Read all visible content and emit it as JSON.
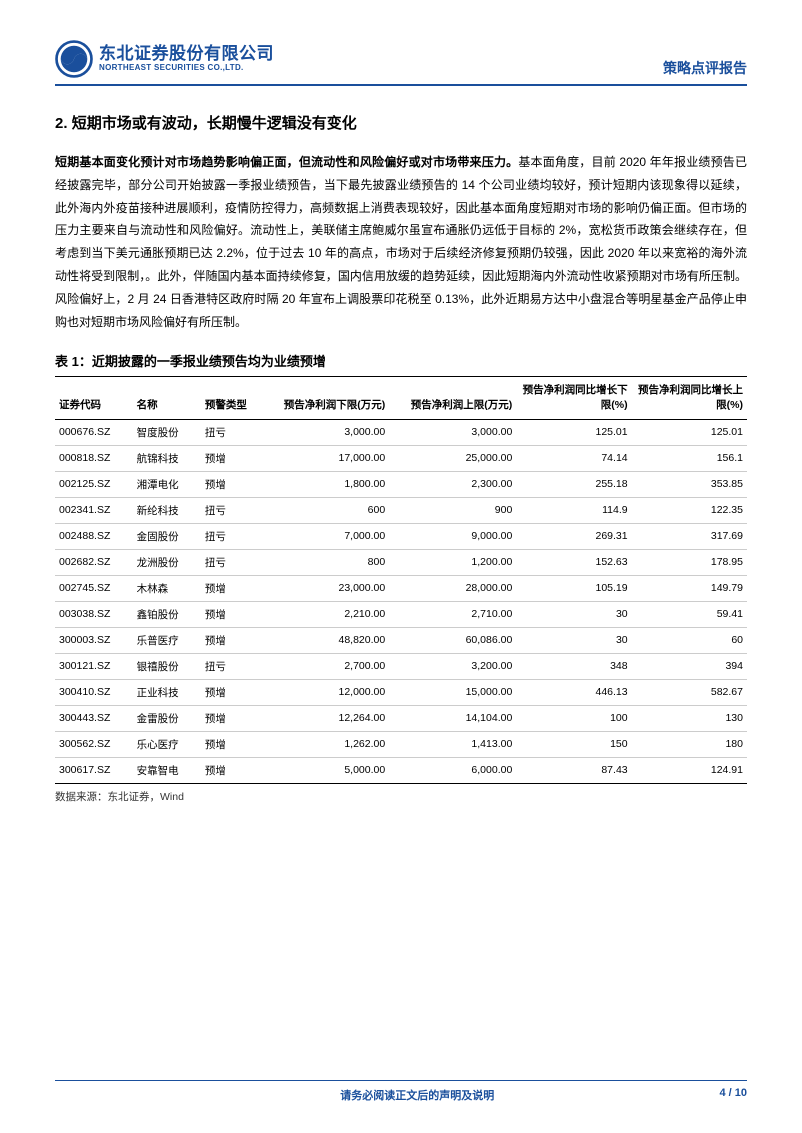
{
  "header": {
    "logo_cn": "东北证券股份有限公司",
    "logo_en": "NORTHEAST SECURITIES CO.,LTD.",
    "report_type": "策略点评报告"
  },
  "section": {
    "number": "2.",
    "title": "短期市场或有波动，长期慢牛逻辑没有变化"
  },
  "paragraph": {
    "lead": "短期基本面变化预计对市场趋势影响偏正面，但流动性和风险偏好或对市场带来压力。",
    "body": "基本面角度，目前 2020 年年报业绩预告已经披露完毕，部分公司开始披露一季报业绩预告，当下最先披露业绩预告的 14 个公司业绩均较好，预计短期内该现象得以延续，此外海内外疫苗接种进展顺利，疫情防控得力，高频数据上消费表现较好，因此基本面角度短期对市场的影响仍偏正面。但市场的压力主要来自与流动性和风险偏好。流动性上，美联储主席鲍威尔虽宣布通胀仍远低于目标的 2%，宽松货币政策会继续存在，但考虑到当下美元通胀预期已达 2.2%，位于过去 10 年的高点，市场对于后续经济修复预期仍较强，因此 2020 年以来宽裕的海外流动性将受到限制，。此外，伴随国内基本面持续修复，国内信用放缓的趋势延续，因此短期海内外流动性收紧预期对市场有所压制。风险偏好上，2 月 24 日香港特区政府时隔 20 年宣布上调股票印花税至 0.13%，此外近期易方达中小盘混合等明星基金产品停止申购也对短期市场风险偏好有所压制。"
  },
  "table": {
    "title": "表 1：近期披露的一季报业绩预告均为业绩预增",
    "columns": [
      "证券代码",
      "名称",
      "预警类型",
      "预告净利润下限(万元)",
      "预告净利润上限(万元)",
      "预告净利润同比增长下限(%)",
      "预告净利润同比增长上限(%)"
    ],
    "rows": [
      [
        "000676.SZ",
        "智度股份",
        "扭亏",
        "3,000.00",
        "3,000.00",
        "125.01",
        "125.01"
      ],
      [
        "000818.SZ",
        "航锦科技",
        "预增",
        "17,000.00",
        "25,000.00",
        "74.14",
        "156.1"
      ],
      [
        "002125.SZ",
        "湘潭电化",
        "预增",
        "1,800.00",
        "2,300.00",
        "255.18",
        "353.85"
      ],
      [
        "002341.SZ",
        "新纶科技",
        "扭亏",
        "600",
        "900",
        "114.9",
        "122.35"
      ],
      [
        "002488.SZ",
        "金固股份",
        "扭亏",
        "7,000.00",
        "9,000.00",
        "269.31",
        "317.69"
      ],
      [
        "002682.SZ",
        "龙洲股份",
        "扭亏",
        "800",
        "1,200.00",
        "152.63",
        "178.95"
      ],
      [
        "002745.SZ",
        "木林森",
        "预增",
        "23,000.00",
        "28,000.00",
        "105.19",
        "149.79"
      ],
      [
        "003038.SZ",
        "鑫铂股份",
        "预增",
        "2,210.00",
        "2,710.00",
        "30",
        "59.41"
      ],
      [
        "300003.SZ",
        "乐普医疗",
        "预增",
        "48,820.00",
        "60,086.00",
        "30",
        "60"
      ],
      [
        "300121.SZ",
        "银禧股份",
        "扭亏",
        "2,700.00",
        "3,200.00",
        "348",
        "394"
      ],
      [
        "300410.SZ",
        "正业科技",
        "预增",
        "12,000.00",
        "15,000.00",
        "446.13",
        "582.67"
      ],
      [
        "300443.SZ",
        "金雷股份",
        "预增",
        "12,264.00",
        "14,104.00",
        "100",
        "130"
      ],
      [
        "300562.SZ",
        "乐心医疗",
        "预增",
        "1,262.00",
        "1,413.00",
        "150",
        "180"
      ],
      [
        "300617.SZ",
        "安靠智电",
        "预增",
        "5,000.00",
        "6,000.00",
        "87.43",
        "124.91"
      ]
    ],
    "source": "数据来源：东北证券，Wind"
  },
  "footer": {
    "disclaimer": "请务必阅读正文后的声明及说明",
    "page": "4 / 10"
  },
  "colors": {
    "brand": "#1a4f9c",
    "text": "#000000",
    "rule": "#cccccc"
  }
}
